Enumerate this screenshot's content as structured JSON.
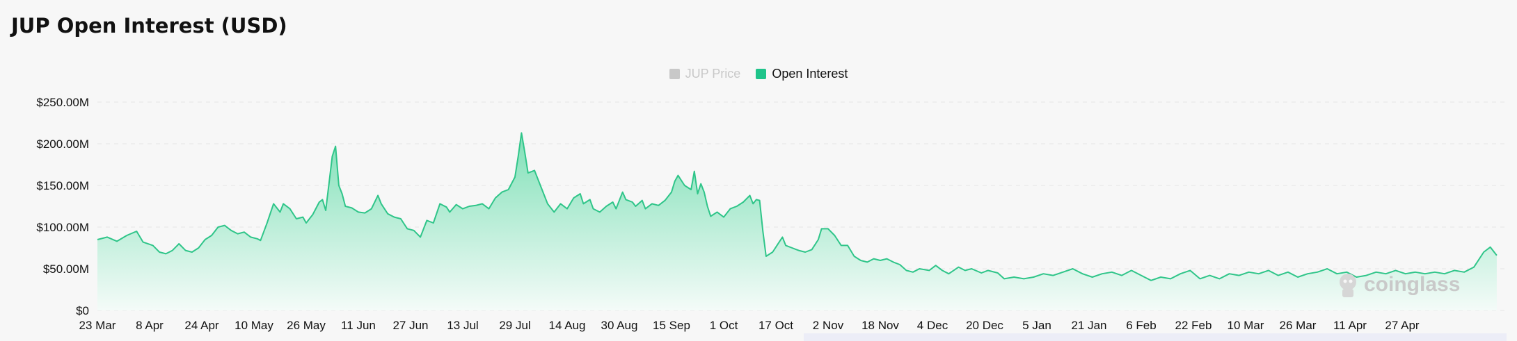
{
  "title": "JUP Open Interest (USD)",
  "legend": [
    {
      "label": "JUP Price",
      "color": "#c8c8c8",
      "active": false
    },
    {
      "label": "Open Interest",
      "color": "#1fc48a",
      "active": true
    }
  ],
  "watermark": "coinglass",
  "colors": {
    "line": "#2fc589",
    "fill_top": "#7fe0b7",
    "fill_bottom": "#f4fbf8"
  },
  "chart_data": {
    "type": "area",
    "title": "JUP Open Interest (USD)",
    "series": [
      {
        "name": "Open Interest",
        "unit": "USD (millions)"
      }
    ],
    "y_ticks": [
      "$0",
      "$50.00M",
      "$100.00M",
      "$150.00M",
      "$200.00M",
      "$250.00M"
    ],
    "ylim": [
      0,
      250
    ],
    "x_ticks": [
      "23 Mar",
      "8 Apr",
      "24 Apr",
      "10 May",
      "26 May",
      "11 Jun",
      "27 Jun",
      "13 Jul",
      "29 Jul",
      "14 Aug",
      "30 Aug",
      "15 Sep",
      "1 Oct",
      "17 Oct",
      "2 Nov",
      "18 Nov",
      "4 Dec",
      "20 Dec",
      "5 Jan",
      "21 Jan",
      "6 Feb",
      "22 Feb",
      "10 Mar",
      "26 Mar",
      "11 Apr",
      "27 Apr"
    ],
    "grid": true,
    "legend_position": "top-center",
    "x_day_start": "23 Mar",
    "points": [
      [
        0,
        85
      ],
      [
        3,
        88
      ],
      [
        6,
        83
      ],
      [
        9,
        90
      ],
      [
        12,
        95
      ],
      [
        14,
        82
      ],
      [
        17,
        78
      ],
      [
        19,
        70
      ],
      [
        21,
        68
      ],
      [
        23,
        72
      ],
      [
        25,
        80
      ],
      [
        27,
        72
      ],
      [
        29,
        70
      ],
      [
        31,
        75
      ],
      [
        33,
        85
      ],
      [
        35,
        90
      ],
      [
        37,
        100
      ],
      [
        39,
        102
      ],
      [
        41,
        96
      ],
      [
        43,
        92
      ],
      [
        45,
        94
      ],
      [
        47,
        88
      ],
      [
        49,
        86
      ],
      [
        50,
        84
      ],
      [
        52,
        105
      ],
      [
        54,
        128
      ],
      [
        56,
        118
      ],
      [
        57,
        128
      ],
      [
        59,
        122
      ],
      [
        61,
        110
      ],
      [
        63,
        112
      ],
      [
        64,
        105
      ],
      [
        66,
        115
      ],
      [
        68,
        130
      ],
      [
        69,
        133
      ],
      [
        70,
        120
      ],
      [
        72,
        185
      ],
      [
        73,
        197
      ],
      [
        74,
        150
      ],
      [
        75,
        140
      ],
      [
        76,
        125
      ],
      [
        78,
        123
      ],
      [
        80,
        118
      ],
      [
        82,
        117
      ],
      [
        84,
        122
      ],
      [
        86,
        138
      ],
      [
        87,
        128
      ],
      [
        89,
        116
      ],
      [
        91,
        112
      ],
      [
        93,
        110
      ],
      [
        95,
        98
      ],
      [
        97,
        96
      ],
      [
        99,
        88
      ],
      [
        101,
        108
      ],
      [
        103,
        105
      ],
      [
        105,
        128
      ],
      [
        107,
        124
      ],
      [
        108,
        118
      ],
      [
        110,
        127
      ],
      [
        112,
        122
      ],
      [
        114,
        125
      ],
      [
        116,
        126
      ],
      [
        118,
        128
      ],
      [
        120,
        122
      ],
      [
        122,
        135
      ],
      [
        124,
        142
      ],
      [
        126,
        145
      ],
      [
        128,
        160
      ],
      [
        129,
        185
      ],
      [
        130,
        213
      ],
      [
        131,
        190
      ],
      [
        132,
        165
      ],
      [
        134,
        168
      ],
      [
        136,
        148
      ],
      [
        138,
        128
      ],
      [
        140,
        118
      ],
      [
        142,
        128
      ],
      [
        144,
        122
      ],
      [
        146,
        135
      ],
      [
        148,
        140
      ],
      [
        149,
        128
      ],
      [
        151,
        133
      ],
      [
        152,
        122
      ],
      [
        154,
        118
      ],
      [
        156,
        125
      ],
      [
        158,
        130
      ],
      [
        159,
        122
      ],
      [
        161,
        142
      ],
      [
        162,
        133
      ],
      [
        164,
        130
      ],
      [
        165,
        125
      ],
      [
        167,
        132
      ],
      [
        168,
        122
      ],
      [
        170,
        128
      ],
      [
        172,
        126
      ],
      [
        174,
        132
      ],
      [
        176,
        142
      ],
      [
        177,
        155
      ],
      [
        178,
        162
      ],
      [
        180,
        150
      ],
      [
        182,
        145
      ],
      [
        183,
        167
      ],
      [
        184,
        140
      ],
      [
        185,
        152
      ],
      [
        186,
        142
      ],
      [
        187,
        125
      ],
      [
        188,
        113
      ],
      [
        190,
        118
      ],
      [
        192,
        112
      ],
      [
        194,
        122
      ],
      [
        196,
        125
      ],
      [
        198,
        130
      ],
      [
        200,
        138
      ],
      [
        201,
        128
      ],
      [
        202,
        133
      ],
      [
        203,
        132
      ],
      [
        204,
        95
      ],
      [
        205,
        65
      ],
      [
        207,
        70
      ],
      [
        209,
        82
      ],
      [
        210,
        88
      ],
      [
        211,
        78
      ],
      [
        213,
        75
      ],
      [
        215,
        72
      ],
      [
        217,
        70
      ],
      [
        219,
        73
      ],
      [
        221,
        85
      ],
      [
        222,
        98
      ],
      [
        224,
        98
      ],
      [
        226,
        90
      ],
      [
        228,
        78
      ],
      [
        230,
        78
      ],
      [
        232,
        65
      ],
      [
        234,
        60
      ],
      [
        236,
        58
      ],
      [
        238,
        62
      ],
      [
        240,
        60
      ],
      [
        242,
        62
      ],
      [
        244,
        58
      ],
      [
        246,
        55
      ],
      [
        248,
        48
      ],
      [
        250,
        46
      ],
      [
        252,
        50
      ],
      [
        255,
        48
      ],
      [
        257,
        54
      ],
      [
        259,
        48
      ],
      [
        261,
        44
      ],
      [
        264,
        52
      ],
      [
        266,
        48
      ],
      [
        268,
        50
      ],
      [
        271,
        45
      ],
      [
        273,
        48
      ],
      [
        276,
        45
      ],
      [
        278,
        38
      ],
      [
        281,
        40
      ],
      [
        284,
        38
      ],
      [
        287,
        40
      ],
      [
        290,
        44
      ],
      [
        293,
        42
      ],
      [
        296,
        46
      ],
      [
        299,
        50
      ],
      [
        302,
        44
      ],
      [
        305,
        40
      ],
      [
        308,
        44
      ],
      [
        311,
        46
      ],
      [
        314,
        42
      ],
      [
        317,
        48
      ],
      [
        320,
        42
      ],
      [
        323,
        36
      ],
      [
        326,
        40
      ],
      [
        329,
        38
      ],
      [
        332,
        44
      ],
      [
        335,
        48
      ],
      [
        338,
        38
      ],
      [
        341,
        42
      ],
      [
        344,
        38
      ],
      [
        347,
        44
      ],
      [
        350,
        42
      ],
      [
        353,
        46
      ],
      [
        356,
        44
      ],
      [
        359,
        48
      ],
      [
        362,
        42
      ],
      [
        365,
        46
      ],
      [
        368,
        40
      ],
      [
        371,
        44
      ],
      [
        374,
        46
      ],
      [
        377,
        50
      ],
      [
        380,
        44
      ],
      [
        383,
        46
      ],
      [
        386,
        40
      ],
      [
        389,
        42
      ],
      [
        392,
        46
      ],
      [
        395,
        44
      ],
      [
        398,
        48
      ],
      [
        401,
        44
      ],
      [
        404,
        46
      ],
      [
        407,
        44
      ],
      [
        410,
        46
      ],
      [
        413,
        44
      ],
      [
        416,
        48
      ],
      [
        419,
        46
      ],
      [
        422,
        52
      ],
      [
        425,
        70
      ],
      [
        427,
        76
      ],
      [
        429,
        66
      ]
    ]
  }
}
